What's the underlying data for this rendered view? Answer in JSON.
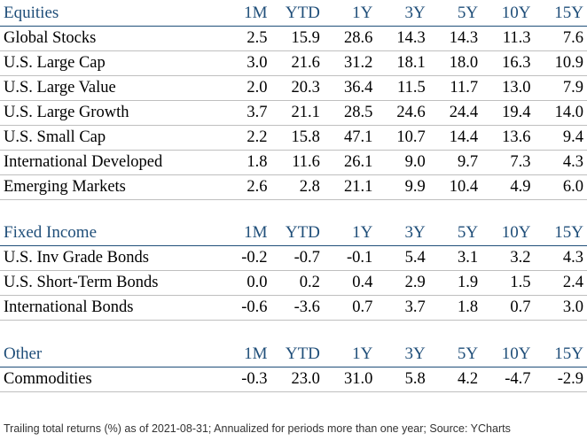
{
  "columns": [
    "1M",
    "YTD",
    "1Y",
    "3Y",
    "5Y",
    "10Y",
    "15Y"
  ],
  "sections": [
    {
      "title": "Equities",
      "rows": [
        {
          "name": "Global Stocks",
          "values": [
            "2.5",
            "15.9",
            "28.6",
            "14.3",
            "14.3",
            "11.3",
            "7.6"
          ]
        },
        {
          "name": "U.S. Large Cap",
          "values": [
            "3.0",
            "21.6",
            "31.2",
            "18.1",
            "18.0",
            "16.3",
            "10.9"
          ]
        },
        {
          "name": "U.S. Large Value",
          "values": [
            "2.0",
            "20.3",
            "36.4",
            "11.5",
            "11.7",
            "13.0",
            "7.9"
          ]
        },
        {
          "name": "U.S. Large Growth",
          "values": [
            "3.7",
            "21.1",
            "28.5",
            "24.6",
            "24.4",
            "19.4",
            "14.0"
          ]
        },
        {
          "name": "U.S. Small Cap",
          "values": [
            "2.2",
            "15.8",
            "47.1",
            "10.7",
            "14.4",
            "13.6",
            "9.4"
          ]
        },
        {
          "name": "International Developed",
          "values": [
            "1.8",
            "11.6",
            "26.1",
            "9.0",
            "9.7",
            "7.3",
            "4.3"
          ]
        },
        {
          "name": "Emerging Markets",
          "values": [
            "2.6",
            "2.8",
            "21.1",
            "9.9",
            "10.4",
            "4.9",
            "6.0"
          ]
        }
      ]
    },
    {
      "title": "Fixed Income",
      "rows": [
        {
          "name": "U.S. Inv Grade Bonds",
          "values": [
            "-0.2",
            "-0.7",
            "-0.1",
            "5.4",
            "3.1",
            "3.2",
            "4.3"
          ]
        },
        {
          "name": "U.S. Short-Term Bonds",
          "values": [
            "0.0",
            "0.2",
            "0.4",
            "2.9",
            "1.9",
            "1.5",
            "2.4"
          ]
        },
        {
          "name": "International Bonds",
          "values": [
            "-0.6",
            "-3.6",
            "0.7",
            "3.7",
            "1.8",
            "0.7",
            "3.0"
          ]
        }
      ]
    },
    {
      "title": "Other",
      "rows": [
        {
          "name": "Commodities",
          "values": [
            "-0.3",
            "23.0",
            "31.0",
            "5.8",
            "4.2",
            "-4.7",
            "-2.9"
          ]
        }
      ]
    }
  ],
  "footer": "Trailing total returns (%) as of 2021-08-31; Annualized for periods more than one year; Source: YCharts",
  "colors": {
    "header_text": "#1f4e79",
    "header_rule": "#1f4e79",
    "row_rule": "#bfbfbf"
  }
}
